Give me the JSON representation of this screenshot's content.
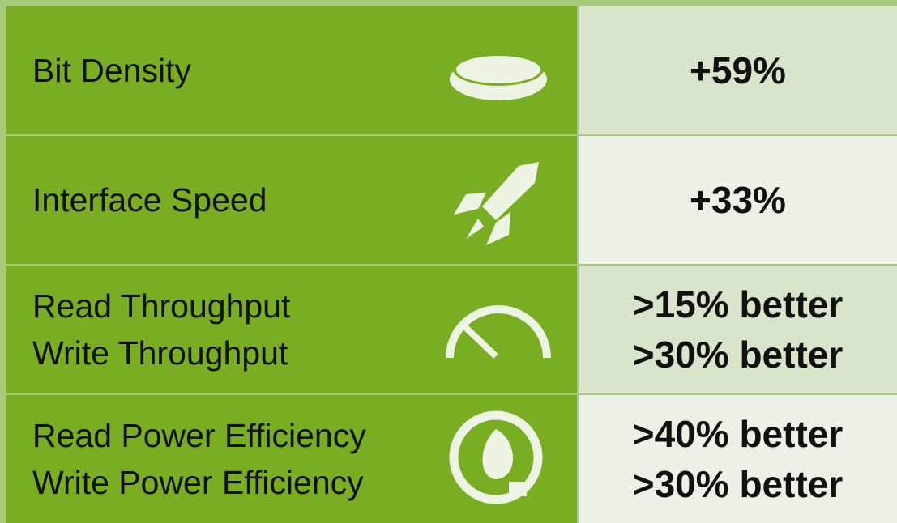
{
  "table": {
    "rows": [
      {
        "labels": [
          "Bit Density"
        ],
        "values": [
          "+59%"
        ]
      },
      {
        "labels": [
          "Interface Speed"
        ],
        "values": [
          "+33%"
        ]
      },
      {
        "labels": [
          "Read Throughput",
          "Write Throughput"
        ],
        "values": [
          ">15% better",
          ">30% better"
        ]
      },
      {
        "labels": [
          "Read Power Efficiency",
          "Write Power Efficiency"
        ],
        "values": [
          ">40% better",
          ">30% better"
        ]
      }
    ]
  }
}
